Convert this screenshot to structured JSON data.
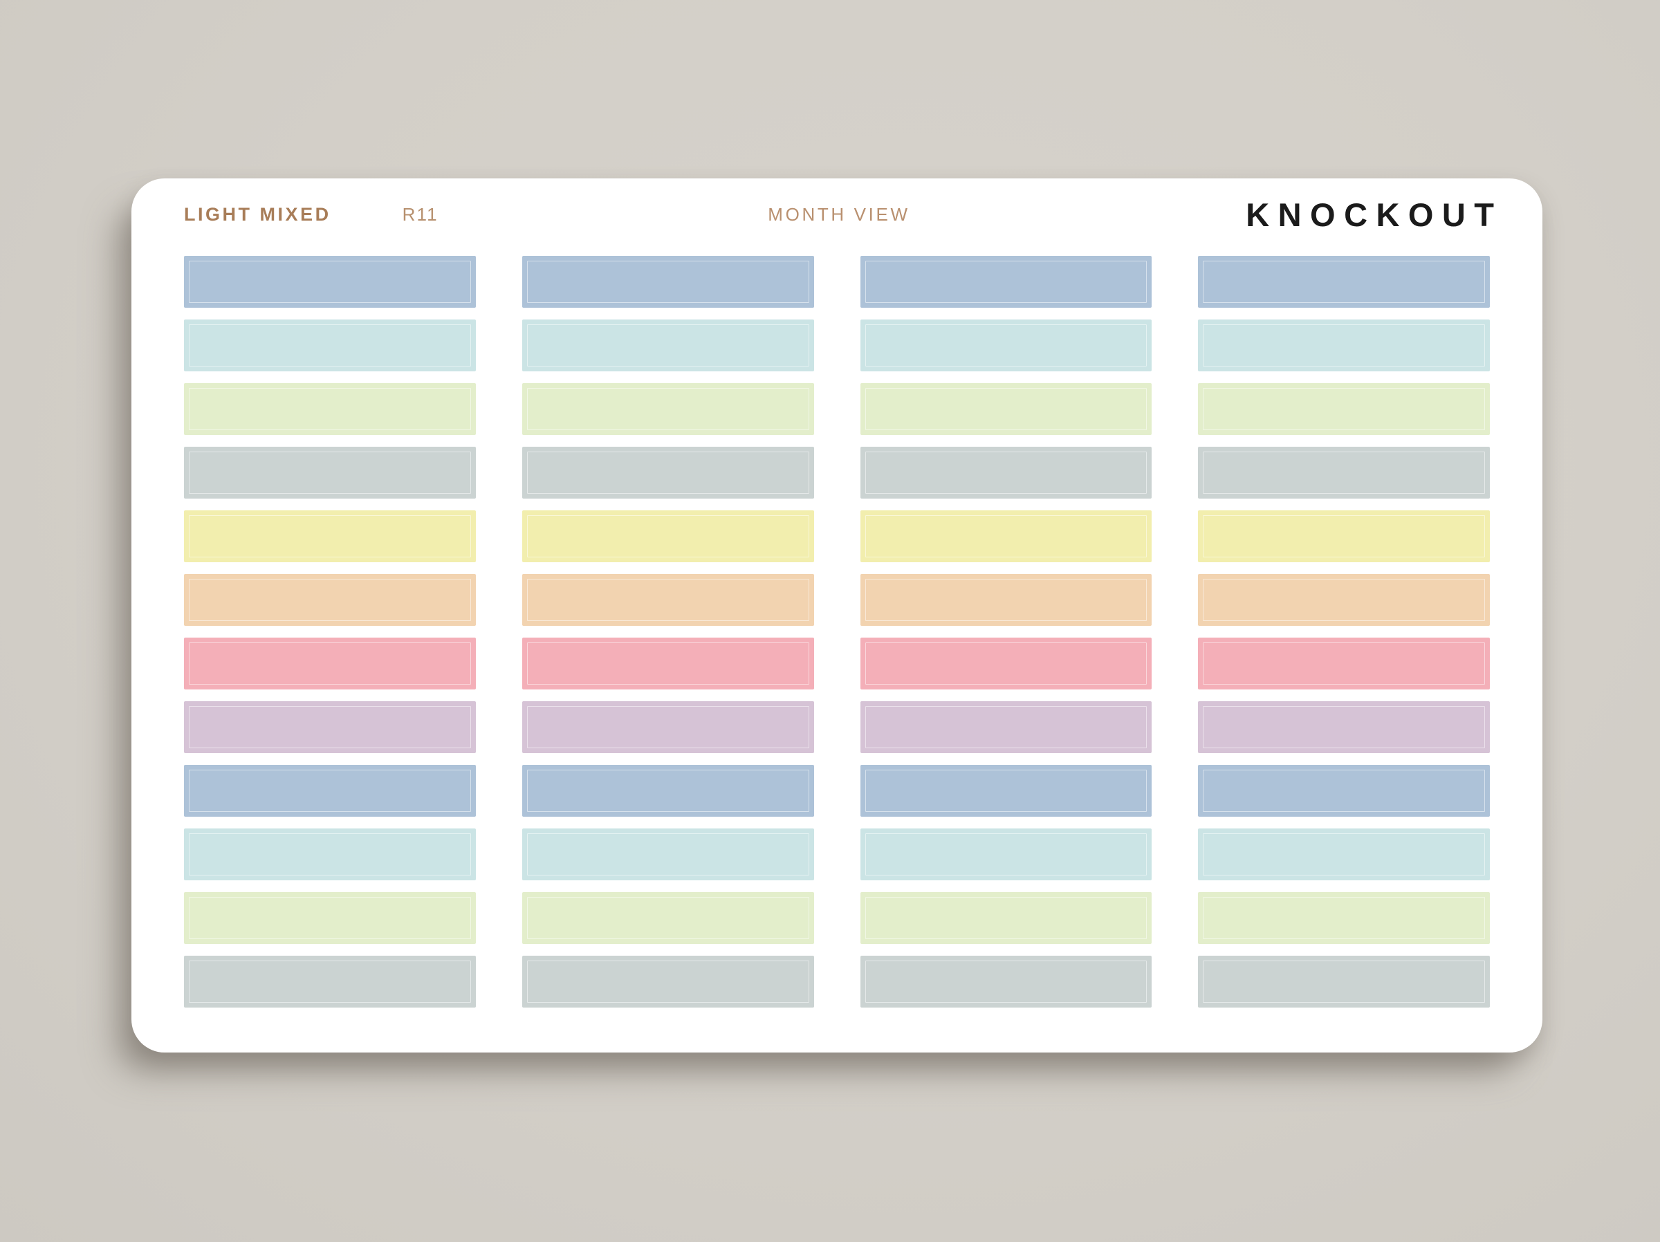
{
  "page": {
    "background": "#d4d0c9"
  },
  "sheet": {
    "title": "LIGHT MIXED",
    "sku": "R11",
    "subtitle": "MONTH VIEW",
    "brand": "KNOCKOUT",
    "title_color": "#a87d58",
    "sku_color": "#b7906e",
    "subtitle_color": "#b9906f",
    "brand_color": "#1b1b1b",
    "paper_color": "#ffffff"
  },
  "swatches": {
    "columns": 4,
    "rows": 12,
    "palette": [
      {
        "name": "blue",
        "hex": "#adc2d8"
      },
      {
        "name": "cyan",
        "hex": "#cbe4e5"
      },
      {
        "name": "green",
        "hex": "#e3eecb"
      },
      {
        "name": "gray",
        "hex": "#cbd3d2"
      },
      {
        "name": "yellow",
        "hex": "#f2eeae"
      },
      {
        "name": "orange",
        "hex": "#f2d3b0"
      },
      {
        "name": "pink",
        "hex": "#f4afb8"
      },
      {
        "name": "lavender",
        "hex": "#d6c3d6"
      }
    ],
    "row_color_sequence": [
      0,
      1,
      2,
      3,
      4,
      5,
      6,
      7,
      0,
      1,
      2,
      3
    ]
  }
}
